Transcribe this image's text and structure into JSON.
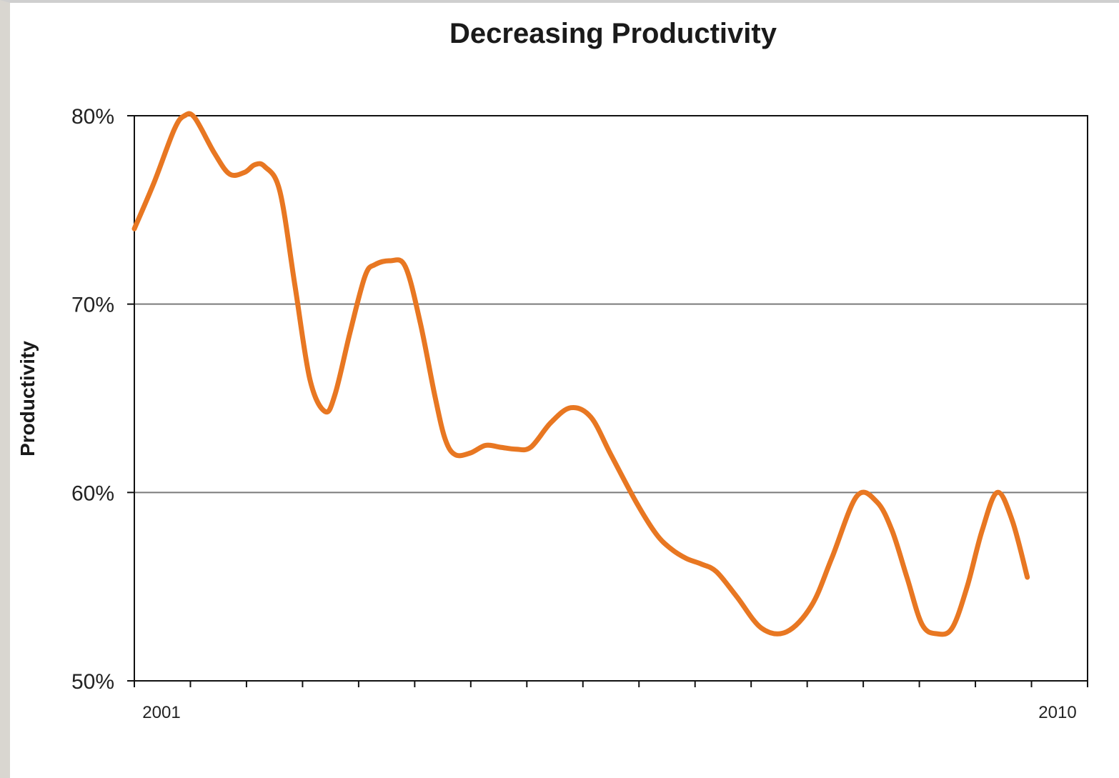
{
  "chart_data": {
    "type": "line",
    "title": "Decreasing Productivity",
    "xlabel": "",
    "ylabel": "Productivity",
    "xlim": [
      2001,
      2010.5
    ],
    "ylim": [
      50,
      80
    ],
    "y_ticks": [
      50,
      60,
      70,
      80
    ],
    "y_tick_labels": [
      "50%",
      "60%",
      "70%",
      "80%"
    ],
    "x_tick_labels": [
      "2001",
      "2010"
    ],
    "grid": "horizontal",
    "line_color": "#E87722",
    "series": [
      {
        "x": [
          2001.0,
          2001.2,
          2001.4,
          2001.5,
          2001.6,
          2001.8,
          2001.95,
          2002.1,
          2002.2,
          2002.3,
          2002.45,
          2002.6,
          2002.75,
          2002.9,
          2003.0,
          2003.15,
          2003.3,
          2003.4,
          2003.55,
          2003.7,
          2003.85,
          2004.0,
          2004.1,
          2004.2,
          2004.35,
          2004.5,
          2004.65,
          2004.8,
          2004.95,
          2005.15,
          2005.35,
          2005.55,
          2005.75,
          2006.0,
          2006.2,
          2006.35,
          2006.5,
          2006.65,
          2006.8,
          2007.0,
          2007.25,
          2007.5,
          2007.75,
          2007.95,
          2008.2,
          2008.4,
          2008.55,
          2008.7,
          2008.85,
          2009.0,
          2009.15,
          2009.3,
          2009.45,
          2009.6,
          2009.75,
          2009.9
        ],
        "y": [
          74.0,
          76.5,
          79.3,
          80.0,
          79.9,
          78.0,
          76.9,
          77.0,
          77.4,
          77.3,
          76.0,
          71.0,
          66.0,
          64.3,
          65.2,
          68.5,
          71.5,
          72.1,
          72.3,
          72.0,
          69.0,
          65.0,
          62.8,
          62.0,
          62.1,
          62.5,
          62.4,
          62.3,
          62.4,
          63.7,
          64.5,
          64.0,
          62.0,
          59.5,
          57.8,
          57.0,
          56.5,
          56.2,
          55.8,
          54.5,
          52.8,
          52.6,
          54.0,
          56.5,
          59.8,
          59.5,
          58.0,
          55.5,
          53.0,
          52.5,
          52.8,
          55.0,
          58.0,
          60.0,
          58.5,
          55.5
        ]
      }
    ]
  }
}
